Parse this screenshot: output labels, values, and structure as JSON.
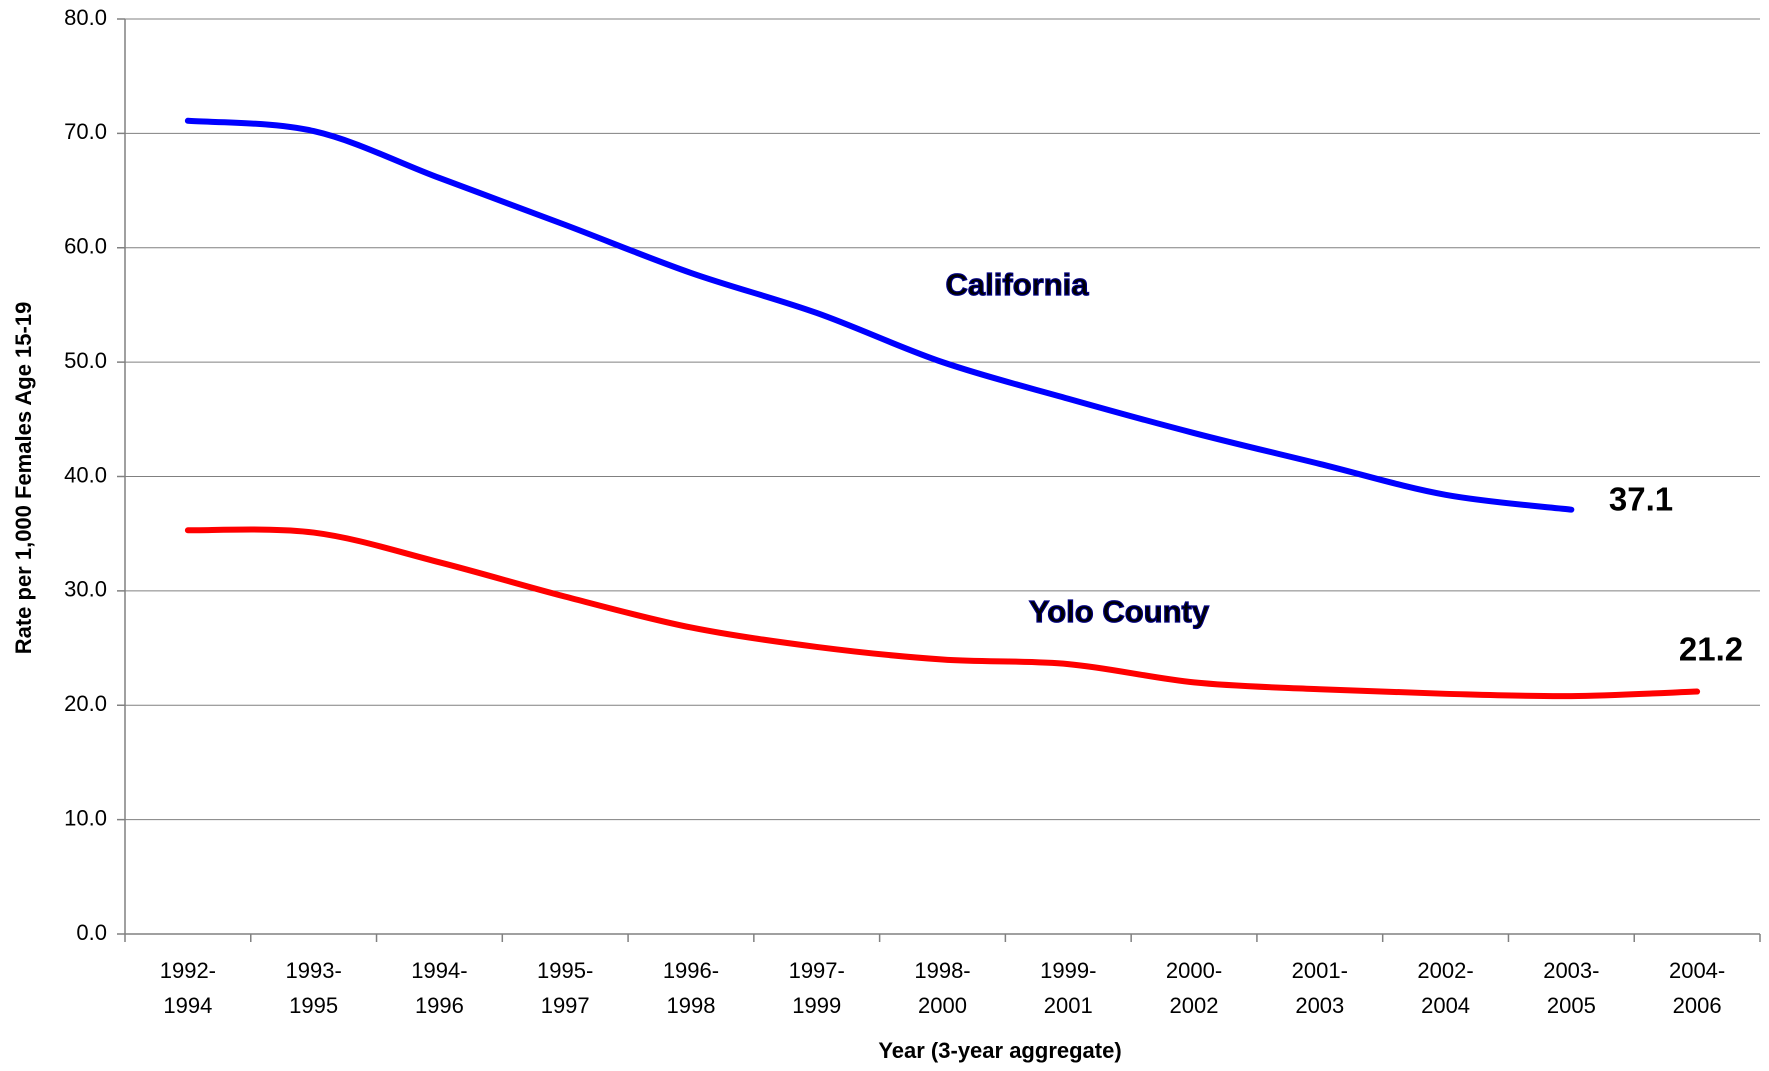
{
  "chart_data": {
    "type": "line",
    "y_label": "Rate per 1,000 Females Age 15-19",
    "x_label": "Year (3-year aggregate)",
    "categories": [
      "1992-1994",
      "1993-1995",
      "1994-1996",
      "1995-1997",
      "1996-1998",
      "1997-1999",
      "1998-2000",
      "1999-2001",
      "2000-2002",
      "2001-2003",
      "2002-2004",
      "2003-2005",
      "2004-2006"
    ],
    "series": [
      {
        "name": "California",
        "color": "#0000ff",
        "values": [
          71.1,
          70.2,
          66.1,
          62.0,
          57.8,
          54.3,
          50.0,
          46.8,
          43.8,
          41.1,
          38.4,
          37.1,
          null
        ]
      },
      {
        "name": "Yolo County",
        "color": "#ff0000",
        "values": [
          35.3,
          35.1,
          32.5,
          29.5,
          26.8,
          25.1,
          24.0,
          23.6,
          22.0,
          21.4,
          21.0,
          20.8,
          21.2
        ]
      }
    ],
    "ylim": [
      0,
      80
    ],
    "yticks": [
      {
        "value": 0,
        "label": "0.0"
      },
      {
        "value": 10,
        "label": "10.0"
      },
      {
        "value": 20,
        "label": "20.0"
      },
      {
        "value": 30,
        "label": "30.0"
      },
      {
        "value": 40,
        "label": "40.0"
      },
      {
        "value": 50,
        "label": "50.0"
      },
      {
        "value": 60,
        "label": "60.0"
      },
      {
        "value": 70,
        "label": "70.0"
      },
      {
        "value": 80,
        "label": "80.0"
      }
    ],
    "grid": true
  }
}
